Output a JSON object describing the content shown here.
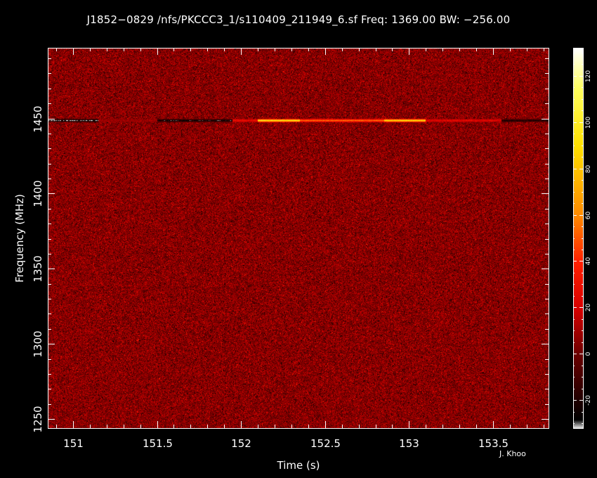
{
  "title": "J1852−0829 /nfs/PKCCC3_1/s110409_211949_6.sf Freq: 1369.00 BW: −256.00",
  "credit": "J. Khoo",
  "chart_data": {
    "type": "heatmap",
    "xlabel": "Time (s)",
    "ylabel": "Frequency (MHz)",
    "xlim": [
      150.85,
      153.83
    ],
    "ylim": [
      1497,
      1244
    ],
    "y_inverted": true,
    "xticks": [
      {
        "value": 151,
        "label": "151"
      },
      {
        "value": 151.5,
        "label": "151.5"
      },
      {
        "value": 152,
        "label": "152"
      },
      {
        "value": 152.5,
        "label": "152.5"
      },
      {
        "value": 153,
        "label": "153"
      },
      {
        "value": 153.5,
        "label": "153.5"
      }
    ],
    "yticks": [
      {
        "value": 1250,
        "label": "1250"
      },
      {
        "value": 1300,
        "label": "1300"
      },
      {
        "value": 1350,
        "label": "1350"
      },
      {
        "value": 1400,
        "label": "1400"
      },
      {
        "value": 1450,
        "label": "1450"
      }
    ],
    "background_level": 5,
    "rfi_band": {
      "frequency_mhz": 1449,
      "segments": [
        {
          "t_start": 150.85,
          "t_end": 151.15,
          "level": -30
        },
        {
          "t_start": 151.15,
          "t_end": 151.5,
          "level": 10
        },
        {
          "t_start": 151.5,
          "t_end": 151.95,
          "level": -25
        },
        {
          "t_start": 151.95,
          "t_end": 152.1,
          "level": 30
        },
        {
          "t_start": 152.1,
          "t_end": 152.35,
          "level": 95
        },
        {
          "t_start": 152.35,
          "t_end": 152.85,
          "level": 55
        },
        {
          "t_start": 152.85,
          "t_end": 153.1,
          "level": 90
        },
        {
          "t_start": 153.1,
          "t_end": 153.55,
          "level": 25
        },
        {
          "t_start": 153.55,
          "t_end": 153.83,
          "level": -20
        }
      ]
    },
    "colorbar": {
      "range": [
        -32,
        132
      ],
      "ticks": [
        -20,
        0,
        20,
        40,
        60,
        80,
        100,
        120
      ],
      "stops": [
        {
          "value": -32,
          "color": "#ffffff"
        },
        {
          "value": -28,
          "color": "#000000"
        },
        {
          "value": 0,
          "color": "#6a0000"
        },
        {
          "value": 20,
          "color": "#d80000"
        },
        {
          "value": 40,
          "color": "#ff2000"
        },
        {
          "value": 60,
          "color": "#ff8a00"
        },
        {
          "value": 90,
          "color": "#ffe000"
        },
        {
          "value": 115,
          "color": "#ffff60"
        },
        {
          "value": 132,
          "color": "#ffffff"
        }
      ]
    }
  }
}
